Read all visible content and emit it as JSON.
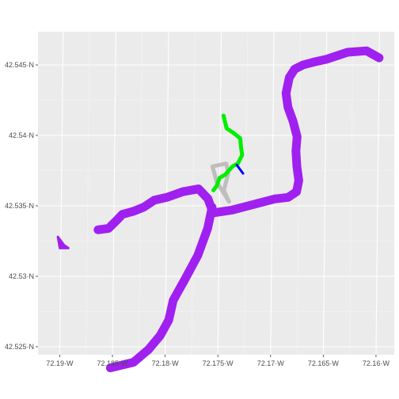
{
  "map": {
    "panel_color": "#ebebeb",
    "grid_major_color": "#ffffff",
    "lat_ticks": [
      {
        "value": 42.525,
        "label": "42.525·N"
      },
      {
        "value": 42.53,
        "label": "42.53·N"
      },
      {
        "value": 42.535,
        "label": "42.535·N"
      },
      {
        "value": 42.54,
        "label": "42.54·N"
      },
      {
        "value": 42.545,
        "label": "42.545·N"
      }
    ],
    "lon_ticks": [
      {
        "value": -72.19,
        "label": "72.19·W"
      },
      {
        "value": -72.185,
        "label": "72.185·W"
      },
      {
        "value": -72.18,
        "label": "72.18·W"
      },
      {
        "value": -72.175,
        "label": "72.175·W"
      },
      {
        "value": -72.17,
        "label": "72.17·W"
      },
      {
        "value": -72.165,
        "label": "72.165·W"
      },
      {
        "value": -72.16,
        "label": "72.16·W"
      }
    ],
    "layers": [
      {
        "name": "river-segment-a",
        "color": "#a020f0",
        "weight": "thick",
        "coords": [
          [
            -72.16,
            42.5455
          ],
          [
            -72.1612,
            42.546
          ],
          [
            -72.163,
            42.5459
          ],
          [
            -72.165,
            42.5454
          ],
          [
            -72.1662,
            42.5452
          ],
          [
            -72.1672,
            42.545
          ],
          [
            -72.168,
            42.5447
          ],
          [
            -72.1685,
            42.5441
          ],
          [
            -72.1688,
            42.543
          ],
          [
            -72.1686,
            42.542
          ],
          [
            -72.1681,
            42.541
          ],
          [
            -72.1677,
            42.5399
          ],
          [
            -72.1678,
            42.5389
          ],
          [
            -72.1677,
            42.5378
          ],
          [
            -72.1675,
            42.5368
          ],
          [
            -72.1677,
            42.536
          ],
          [
            -72.1685,
            42.5356
          ],
          [
            -72.1696,
            42.5355
          ]
        ]
      },
      {
        "name": "river-segment-b",
        "color": "#a020f0",
        "weight": "thick",
        "coords": [
          [
            -72.1697,
            42.5355
          ],
          [
            -72.1738,
            42.5347
          ],
          [
            -72.1756,
            42.5345
          ],
          [
            -72.1761,
            42.5355
          ],
          [
            -72.177,
            42.5362
          ],
          [
            -72.1785,
            42.536
          ],
          [
            -72.18,
            42.5356
          ],
          [
            -72.1812,
            42.5354
          ],
          [
            -72.1822,
            42.5349
          ],
          [
            -72.1832,
            42.5346
          ],
          [
            -72.1842,
            42.5344
          ],
          [
            -72.1847,
            42.534
          ],
          [
            -72.1855,
            42.5334
          ],
          [
            -72.1865,
            42.5333
          ]
        ]
      },
      {
        "name": "river-segment-c",
        "color": "#a020f0",
        "weight": "thick",
        "coords": [
          [
            -72.1757,
            42.5349
          ],
          [
            -72.1761,
            42.5334
          ],
          [
            -72.177,
            42.5315
          ],
          [
            -72.1782,
            42.5298
          ],
          [
            -72.1793,
            42.5283
          ],
          [
            -72.1797,
            42.5269
          ],
          [
            -72.1805,
            42.5258
          ],
          [
            -72.1816,
            42.5248
          ],
          [
            -72.183,
            42.5239
          ],
          [
            -72.1852,
            42.5235
          ]
        ]
      },
      {
        "name": "river-fragment",
        "color": "#a020f0",
        "weight": "thin",
        "coords": [
          [
            -72.1901,
            42.532
          ],
          [
            -72.1903,
            42.5328
          ],
          [
            -72.1897,
            42.5322
          ],
          [
            -72.1893,
            42.532
          ],
          [
            -72.1901,
            42.532
          ]
        ]
      },
      {
        "name": "road-triangle",
        "color": "#bebebe",
        "weight": "medium",
        "coords": [
          [
            -72.1757,
            42.5378
          ],
          [
            -72.1744,
            42.538
          ],
          [
            -72.1742,
            42.5373
          ],
          [
            -72.1746,
            42.5361
          ],
          [
            -72.1741,
            42.5353
          ],
          [
            -72.1753,
            42.5367
          ],
          [
            -72.1757,
            42.5378
          ]
        ]
      },
      {
        "name": "stream-green",
        "color": "#00ee00",
        "weight": "medium",
        "coords": [
          [
            -72.1747,
            42.5414
          ],
          [
            -72.1744,
            42.5405
          ],
          [
            -72.1738,
            42.5402
          ],
          [
            -72.1731,
            42.5398
          ],
          [
            -72.173,
            42.5391
          ],
          [
            -72.1729,
            42.5386
          ],
          [
            -72.1733,
            42.538
          ],
          [
            -72.1738,
            42.5378
          ],
          [
            -72.1745,
            42.5372
          ],
          [
            -72.175,
            42.537
          ],
          [
            -72.1753,
            42.5364
          ],
          [
            -72.1756,
            42.5361
          ]
        ]
      },
      {
        "name": "stream-blue",
        "color": "#0000ff",
        "weight": "thin",
        "coords": [
          [
            -72.1734,
            42.5379
          ],
          [
            -72.1728,
            42.5373
          ]
        ]
      }
    ]
  }
}
